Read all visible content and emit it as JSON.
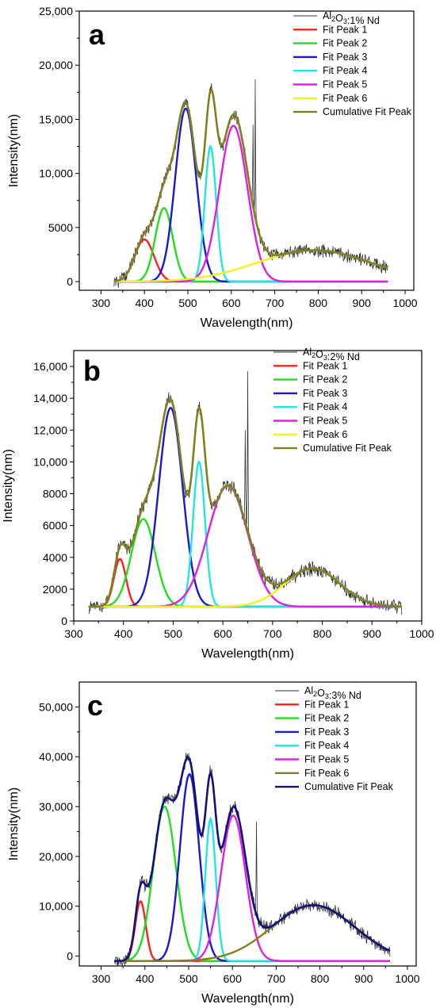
{
  "chart_data": [
    {
      "type": "line",
      "panel_label": "a",
      "xlabel": "Wavelength(nm)",
      "ylabel": "Intensity(nm)",
      "xlim": [
        250,
        1020
      ],
      "ylim": [
        -800,
        25000
      ],
      "x_ticks": [
        300,
        400,
        500,
        600,
        700,
        800,
        900,
        1000
      ],
      "x_tick_labels": [
        "300",
        "400",
        "500",
        "600",
        "700",
        "800",
        "900",
        "1000"
      ],
      "y_ticks": [
        0,
        5000,
        10000,
        15000,
        20000,
        25000
      ],
      "y_tick_labels": [
        "0",
        "5000",
        "10,000",
        "15,000",
        "20,000",
        "25,000"
      ],
      "legend_position": "top-right",
      "legend": [
        {
          "sub_base": "Al",
          "sub1": "2",
          "sub_mid": "O",
          "sub2": "3",
          "sub_tail": ":1% Nd"
        },
        "Fit Peak 1",
        "Fit Peak 2",
        "Fit Peak 3",
        "Fit Peak 4",
        "Fit Peak 5",
        "Fit Peak 6",
        "Cumulative Fit Peak"
      ],
      "colors": [
        "#333333",
        "#ff2020",
        "#22dd22",
        "#1a1acc",
        "#22e6e6",
        "#e020e0",
        "#f5f020",
        "#808020"
      ],
      "x_range": [
        330,
        960
      ],
      "baseline": 0,
      "peaks": [
        {
          "center": 400,
          "height": 3900,
          "width": 22
        },
        {
          "center": 445,
          "height": 6800,
          "width": 20
        },
        {
          "center": 495,
          "height": 16000,
          "width": 24
        },
        {
          "center": 552,
          "height": 12500,
          "width": 13
        },
        {
          "center": 605,
          "height": 14400,
          "width": 32
        },
        {
          "center": 790,
          "height": 2900,
          "width": 130
        }
      ],
      "spikes": [
        {
          "x": 655,
          "y": 18700
        },
        {
          "x": 650,
          "y": 14500
        }
      ]
    },
    {
      "type": "line",
      "panel_label": "b",
      "xlabel": "Wavelength(nm)",
      "ylabel": "Intensity(nm)",
      "xlim": [
        300,
        1000
      ],
      "ylim": [
        0,
        17000
      ],
      "x_ticks": [
        300,
        400,
        500,
        600,
        700,
        800,
        900,
        1000
      ],
      "x_tick_labels": [
        "300",
        "400",
        "500",
        "600",
        "700",
        "800",
        "900",
        "1000"
      ],
      "y_ticks": [
        0,
        2000,
        4000,
        6000,
        8000,
        10000,
        12000,
        14000,
        16000
      ],
      "y_tick_labels": [
        "0",
        "2000",
        "4000",
        "6000",
        "8000",
        "10,000",
        "12,000",
        "14,000",
        "16,000"
      ],
      "legend_position": "top-right",
      "legend": [
        {
          "sub_base": "Al",
          "sub1": "2",
          "sub_mid": "O",
          "sub2": "3",
          "sub_tail": ":2% Nd"
        },
        "Fit Peak 1",
        "Fit Peak 2",
        "Fit Peak 3",
        "Fit Peak 4",
        "Fit Peak 5",
        "Fit Peak 6",
        "Cumulative Fit Peak"
      ],
      "colors": [
        "#333333",
        "#ff2020",
        "#22dd22",
        "#1a1acc",
        "#22e6e6",
        "#e020e0",
        "#f5f020",
        "#808020"
      ],
      "x_range": [
        330,
        960
      ],
      "baseline": 900,
      "peaks": [
        {
          "center": 393,
          "height": 3000,
          "width": 12
        },
        {
          "center": 440,
          "height": 5500,
          "width": 24
        },
        {
          "center": 495,
          "height": 12500,
          "width": 24
        },
        {
          "center": 552,
          "height": 9100,
          "width": 12
        },
        {
          "center": 610,
          "height": 7600,
          "width": 40
        },
        {
          "center": 780,
          "height": 2400,
          "width": 55
        }
      ],
      "spikes": [
        {
          "x": 650,
          "y": 15700
        },
        {
          "x": 645,
          "y": 12000
        }
      ]
    },
    {
      "type": "line",
      "panel_label": "c",
      "xlabel": "Wavelength(nm)",
      "ylabel": "Intensity(nm)",
      "xlim": [
        250,
        1020
      ],
      "ylim": [
        -2000,
        55000
      ],
      "x_ticks": [
        300,
        400,
        500,
        600,
        700,
        800,
        900,
        1000
      ],
      "x_tick_labels": [
        "300",
        "400",
        "500",
        "600",
        "700",
        "800",
        "900",
        "1000"
      ],
      "y_ticks": [
        0,
        10000,
        20000,
        30000,
        40000,
        50000
      ],
      "y_tick_labels": [
        "0",
        "10,000",
        "20,000",
        "30,000",
        "40,000",
        "50,000"
      ],
      "legend_position": "top-right",
      "legend": [
        {
          "sub_base": "Al",
          "sub1": "2",
          "sub_mid": "O",
          "sub2": "3",
          "sub_tail": ":3% Nd"
        },
        "Fit Peak 1",
        "Fit Peak 2",
        "Fit Peak 3",
        "Fit Peak 4",
        "Fit Peak 5",
        "Fit Peak 6",
        "Cumulative Fit Peak"
      ],
      "colors": [
        "#333333",
        "#ff2020",
        "#22dd22",
        "#1a1acc",
        "#22e6e6",
        "#e020e0",
        "#808020",
        "#12127a"
      ],
      "x_range": [
        330,
        960
      ],
      "baseline": -1000,
      "peaks": [
        {
          "center": 390,
          "height": 12000,
          "width": 12
        },
        {
          "center": 445,
          "height": 31000,
          "width": 26
        },
        {
          "center": 502,
          "height": 37500,
          "width": 22
        },
        {
          "center": 550,
          "height": 28500,
          "width": 12
        },
        {
          "center": 602,
          "height": 29200,
          "width": 28
        },
        {
          "center": 785,
          "height": 11200,
          "width": 95
        }
      ],
      "spikes": [
        {
          "x": 655,
          "y": 27000
        }
      ]
    }
  ]
}
